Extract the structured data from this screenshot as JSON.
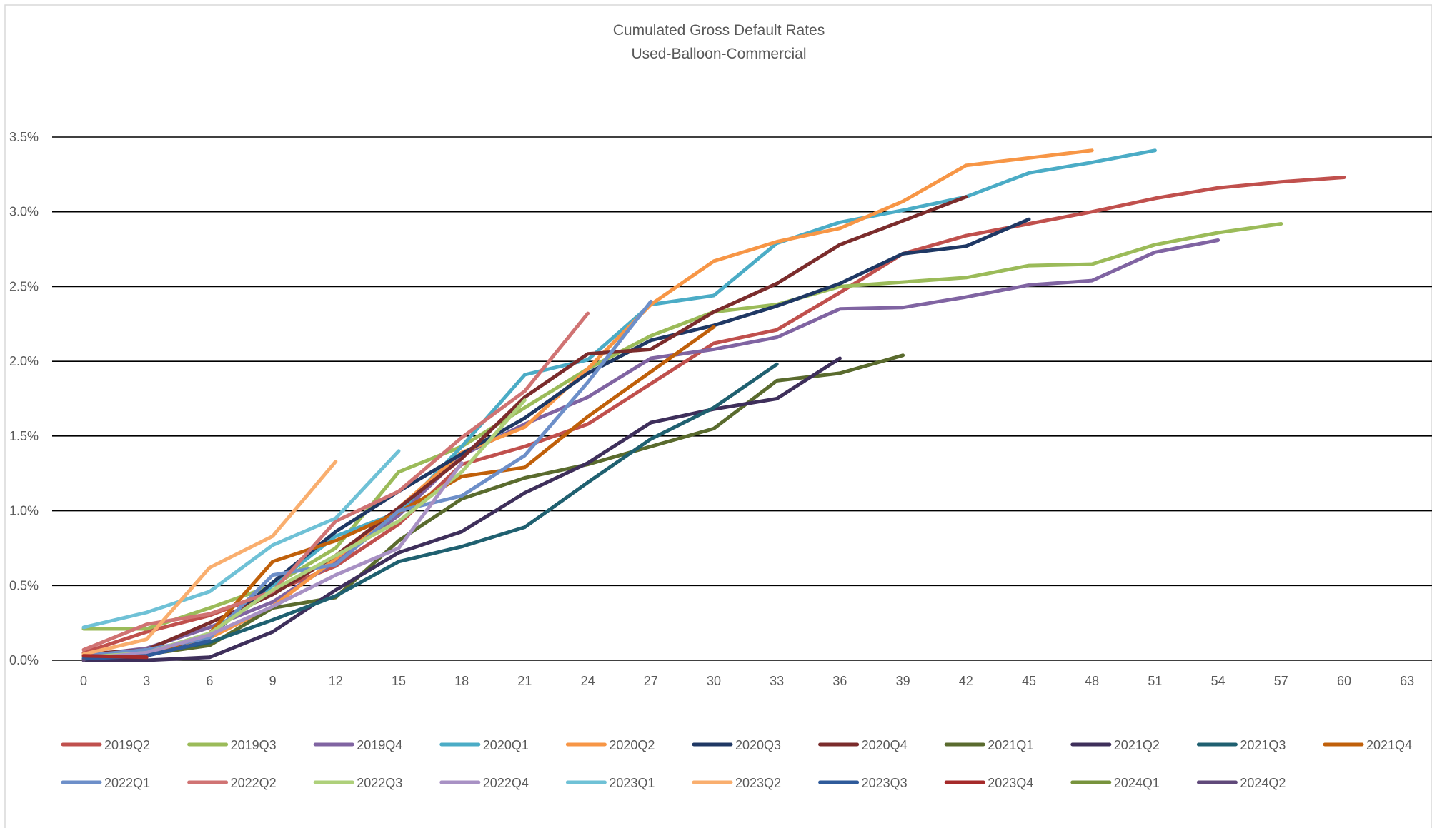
{
  "chart_data": {
    "type": "line",
    "title": "Cumulated Gross Default Rates",
    "subtitle": "Used-Balloon-Commercial",
    "xlabel": "",
    "ylabel": "",
    "x_ticks": [
      0,
      3,
      6,
      9,
      12,
      15,
      18,
      21,
      24,
      27,
      30,
      33,
      36,
      39,
      42,
      45,
      48,
      51,
      54,
      57,
      60,
      63
    ],
    "xlim": [
      0,
      63
    ],
    "y_ticks": [
      "0.0%",
      "0.5%",
      "1.0%",
      "1.5%",
      "2.0%",
      "2.5%",
      "3.0%",
      "3.5%"
    ],
    "ylim": [
      0,
      3.5
    ],
    "y_unit": "%",
    "grid": "horizontal",
    "legend_position": "bottom",
    "series": [
      {
        "name": "2019Q2",
        "color": "#C0504D",
        "x": [
          0,
          3,
          6,
          9,
          12,
          15,
          18,
          21,
          24,
          27,
          30,
          33,
          36,
          39,
          42,
          45,
          48,
          51,
          54,
          57,
          60
        ],
        "values": [
          0.05,
          0.19,
          0.3,
          0.46,
          0.63,
          0.91,
          1.31,
          1.43,
          1.58,
          1.85,
          2.12,
          2.21,
          2.46,
          2.72,
          2.84,
          2.92,
          3.0,
          3.09,
          3.16,
          3.2,
          3.23
        ]
      },
      {
        "name": "2019Q3",
        "color": "#9BBB59",
        "x": [
          0,
          3,
          6,
          9,
          12,
          15,
          18,
          21,
          24,
          27,
          30,
          33,
          36,
          39,
          42,
          45,
          48,
          51,
          54,
          57
        ],
        "values": [
          0.21,
          0.21,
          0.35,
          0.5,
          0.75,
          1.26,
          1.43,
          1.69,
          1.95,
          2.17,
          2.33,
          2.38,
          2.5,
          2.53,
          2.56,
          2.64,
          2.65,
          2.78,
          2.86,
          2.92
        ]
      },
      {
        "name": "2019Q4",
        "color": "#8064A2",
        "x": [
          0,
          3,
          6,
          9,
          12,
          15,
          18,
          21,
          24,
          27,
          30,
          33,
          36,
          39,
          42,
          45,
          48,
          51,
          54
        ],
        "values": [
          0.03,
          0.08,
          0.22,
          0.39,
          0.66,
          0.97,
          1.37,
          1.58,
          1.76,
          2.02,
          2.08,
          2.16,
          2.35,
          2.36,
          2.43,
          2.51,
          2.54,
          2.73,
          2.81
        ]
      },
      {
        "name": "2020Q1",
        "color": "#4BACC6",
        "x": [
          0,
          3,
          6,
          9,
          12,
          15,
          18,
          21,
          24,
          27,
          30,
          33,
          36,
          39,
          42,
          45,
          48,
          51
        ],
        "values": [
          0.02,
          0.05,
          0.18,
          0.5,
          0.83,
          0.99,
          1.43,
          1.91,
          2.01,
          2.38,
          2.44,
          2.79,
          2.93,
          3.01,
          3.1,
          3.26,
          3.33,
          3.41
        ]
      },
      {
        "name": "2020Q2",
        "color": "#F79646",
        "x": [
          0,
          3,
          6,
          9,
          12,
          15,
          18,
          21,
          24,
          27,
          30,
          33,
          36,
          39,
          42,
          45,
          48
        ],
        "values": [
          0.02,
          0.04,
          0.15,
          0.36,
          0.68,
          1.02,
          1.39,
          1.56,
          1.95,
          2.38,
          2.67,
          2.8,
          2.89,
          3.07,
          3.31,
          3.36,
          3.41
        ]
      },
      {
        "name": "2020Q3",
        "color": "#1F3864",
        "x": [
          0,
          3,
          6,
          9,
          12,
          15,
          18,
          21,
          24,
          27,
          30,
          33,
          36,
          39,
          42,
          45
        ],
        "values": [
          0.02,
          0.05,
          0.16,
          0.52,
          0.86,
          1.13,
          1.38,
          1.62,
          1.92,
          2.14,
          2.24,
          2.37,
          2.52,
          2.72,
          2.77,
          2.95
        ]
      },
      {
        "name": "2020Q4",
        "color": "#7B2C2C",
        "x": [
          0,
          3,
          6,
          9,
          12,
          15,
          18,
          21,
          24,
          27,
          30,
          33,
          36,
          39,
          42
        ],
        "values": [
          0.04,
          0.07,
          0.25,
          0.44,
          0.7,
          1.02,
          1.35,
          1.76,
          2.05,
          2.08,
          2.33,
          2.52,
          2.78,
          2.94,
          3.1
        ]
      },
      {
        "name": "2021Q1",
        "color": "#5A6B2E",
        "x": [
          0,
          3,
          6,
          9,
          12,
          15,
          18,
          21,
          24,
          27,
          30,
          33,
          36,
          39
        ],
        "values": [
          0.01,
          0.04,
          0.1,
          0.35,
          0.42,
          0.8,
          1.08,
          1.22,
          1.31,
          1.43,
          1.55,
          1.87,
          1.92,
          2.04
        ]
      },
      {
        "name": "2021Q2",
        "color": "#3E2F5B",
        "x": [
          0,
          3,
          6,
          9,
          12,
          15,
          18,
          21,
          24,
          27,
          30,
          33,
          36
        ],
        "values": [
          0.0,
          0.0,
          0.02,
          0.19,
          0.47,
          0.72,
          0.86,
          1.12,
          1.32,
          1.59,
          1.68,
          1.75,
          2.02
        ]
      },
      {
        "name": "2021Q3",
        "color": "#1F6070",
        "x": [
          0,
          3,
          6,
          9,
          12,
          15,
          18,
          21,
          24,
          27,
          30,
          33
        ],
        "values": [
          0.01,
          0.04,
          0.12,
          0.27,
          0.43,
          0.66,
          0.76,
          0.89,
          1.19,
          1.48,
          1.69,
          1.98
        ]
      },
      {
        "name": "2021Q4",
        "color": "#C0600A",
        "x": [
          0,
          3,
          6,
          9,
          12,
          15,
          18,
          21,
          24,
          27,
          30
        ],
        "values": [
          0.04,
          0.03,
          0.18,
          0.66,
          0.8,
          0.99,
          1.23,
          1.29,
          1.63,
          1.93,
          2.23
        ]
      },
      {
        "name": "2022Q1",
        "color": "#6D8FC9",
        "x": [
          0,
          3,
          6,
          9,
          12,
          15,
          18,
          21,
          24,
          27
        ],
        "values": [
          0.03,
          0.07,
          0.15,
          0.57,
          0.64,
          1.0,
          1.1,
          1.37,
          1.86,
          2.4
        ]
      },
      {
        "name": "2022Q2",
        "color": "#D07373",
        "x": [
          0,
          3,
          6,
          9,
          12,
          15,
          18,
          21,
          24
        ],
        "values": [
          0.07,
          0.24,
          0.31,
          0.46,
          0.93,
          1.13,
          1.49,
          1.8,
          2.32
        ]
      },
      {
        "name": "2022Q3",
        "color": "#AED07A",
        "x": [
          0,
          3,
          6,
          9,
          12,
          15,
          18,
          21
        ],
        "values": [
          0.02,
          0.05,
          0.18,
          0.47,
          0.7,
          0.93,
          1.26,
          1.74
        ]
      },
      {
        "name": "2022Q4",
        "color": "#A891C4",
        "x": [
          0,
          3,
          6,
          9,
          12,
          15,
          18
        ],
        "values": [
          0.01,
          0.05,
          0.17,
          0.36,
          0.57,
          0.75,
          1.32
        ]
      },
      {
        "name": "2023Q1",
        "color": "#6FC1D6",
        "x": [
          0,
          3,
          6,
          9,
          12,
          15
        ],
        "values": [
          0.22,
          0.32,
          0.46,
          0.77,
          0.95,
          1.4
        ]
      },
      {
        "name": "2023Q2",
        "color": "#F9AE6E",
        "x": [
          0,
          3,
          6,
          9,
          12
        ],
        "values": [
          0.04,
          0.14,
          0.62,
          0.83,
          1.33
        ]
      },
      {
        "name": "2023Q3",
        "color": "#2E5A9A",
        "x": [
          0,
          3,
          6
        ],
        "values": [
          0.01,
          0.03,
          0.13
        ]
      },
      {
        "name": "2023Q4",
        "color": "#A52A2A",
        "x": [
          0,
          3
        ],
        "values": [
          0.03,
          0.02
        ]
      },
      {
        "name": "2024Q1",
        "color": "#77933C",
        "x": [
          0
        ],
        "values": [
          0.0
        ]
      },
      {
        "name": "2024Q2",
        "color": "#60497A",
        "x": [
          0
        ],
        "values": [
          0.0
        ]
      }
    ]
  }
}
